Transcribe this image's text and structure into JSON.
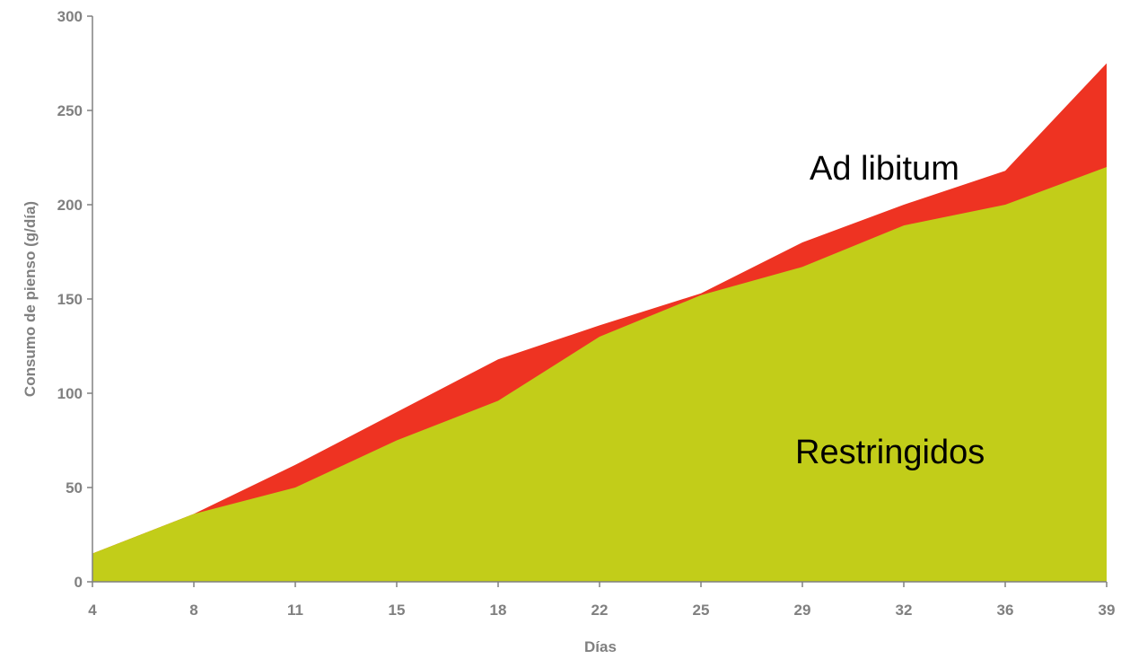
{
  "chart_data": {
    "type": "area",
    "categories": [
      "4",
      "8",
      "11",
      "15",
      "18",
      "22",
      "25",
      "29",
      "32",
      "36",
      "39"
    ],
    "series": [
      {
        "name": "Ad libitum",
        "color": "#ee3322",
        "values": [
          15,
          36,
          62,
          90,
          118,
          136,
          153,
          180,
          200,
          218,
          275
        ]
      },
      {
        "name": "Restringidos",
        "color": "#c2cd19",
        "values": [
          15,
          36,
          50,
          75,
          96,
          130,
          152,
          167,
          189,
          200,
          220
        ]
      }
    ],
    "annotations": [
      {
        "text": "Ad libitum",
        "series": "Ad libitum"
      },
      {
        "text": "Restringidos",
        "series": "Restringidos"
      }
    ],
    "title": "",
    "xlabel": "Días",
    "ylabel": "Consumo de pienso (g/día)",
    "ylim": [
      0,
      300
    ],
    "yticks": [
      0,
      50,
      100,
      150,
      200,
      250,
      300
    ],
    "grid": false,
    "legend": "none"
  }
}
